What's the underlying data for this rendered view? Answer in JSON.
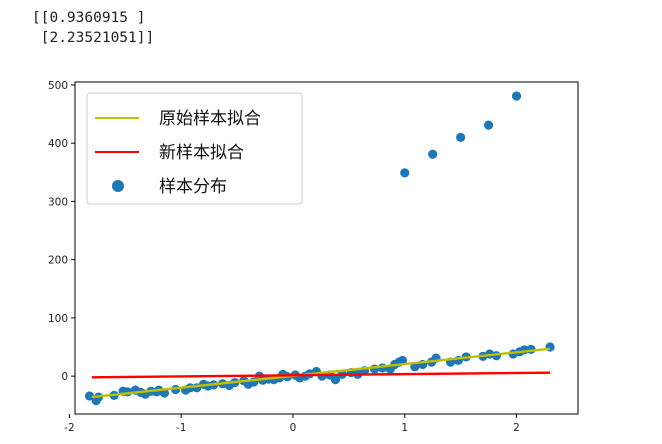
{
  "output": {
    "line1": "[[0.9360915 ]",
    "line2": " [2.23521051]]"
  },
  "chart_data": {
    "type": "scatter",
    "title": "",
    "xlabel": "",
    "ylabel": "",
    "xlim": [
      -1.95,
      2.55
    ],
    "ylim": [
      -65,
      505
    ],
    "xticks": [
      -2,
      -1,
      0,
      1,
      2
    ],
    "yticks": [
      0,
      100,
      200,
      300,
      400,
      500
    ],
    "grid": false,
    "legend_placement": "top-left",
    "series": [
      {
        "name": "原始样本拟合",
        "kind": "line",
        "color": "#bfbf00",
        "x": [
          -1.8,
          2.3
        ],
        "y": [
          -36.0,
          47.0
        ]
      },
      {
        "name": "新样本拟合",
        "kind": "line",
        "color": "#ff0000",
        "x": [
          -1.8,
          2.3
        ],
        "y": [
          -2.0,
          6.0
        ]
      },
      {
        "name": "样本分布",
        "kind": "scatter",
        "color": "#1f77b4",
        "x": [
          -1.82,
          -1.76,
          -1.74,
          -1.6,
          -1.52,
          -1.48,
          -1.41,
          -1.36,
          -1.32,
          -1.27,
          -1.22,
          -1.2,
          -1.15,
          -1.05,
          -0.96,
          -0.92,
          -0.86,
          -0.8,
          -0.76,
          -0.71,
          -0.63,
          -0.57,
          -0.52,
          -0.44,
          -0.4,
          -0.35,
          -0.3,
          -0.27,
          -0.22,
          -0.17,
          -0.12,
          -0.09,
          -0.05,
          0.02,
          0.06,
          0.11,
          0.15,
          0.21,
          0.26,
          0.33,
          0.38,
          0.44,
          0.52,
          0.58,
          0.64,
          0.73,
          0.8,
          0.87,
          0.91,
          0.95,
          0.98,
          1.09,
          1.16,
          1.24,
          1.28,
          1.41,
          1.48,
          1.55,
          1.7,
          1.76,
          1.82,
          1.97,
          2.03,
          2.07,
          2.13,
          2.3,
          1.0,
          1.25,
          1.5,
          1.75,
          2.0
        ],
        "y": [
          -34,
          -42,
          -36,
          -33,
          -26,
          -27,
          -24,
          -28,
          -31,
          -26,
          -27,
          -24,
          -29,
          -23,
          -24,
          -20,
          -20,
          -14,
          -17,
          -15,
          -13,
          -16,
          -11,
          -8,
          -14,
          -10,
          0,
          -7,
          -5,
          -6,
          -3,
          3,
          -1,
          2,
          -3,
          0,
          4,
          8,
          0,
          2,
          -6,
          3,
          6,
          3,
          9,
          12,
          14,
          12,
          20,
          24,
          27,
          16,
          20,
          24,
          31,
          24,
          27,
          33,
          34,
          38,
          35,
          38,
          42,
          45,
          46,
          50,
          349,
          381,
          410,
          431,
          481
        ]
      }
    ]
  }
}
